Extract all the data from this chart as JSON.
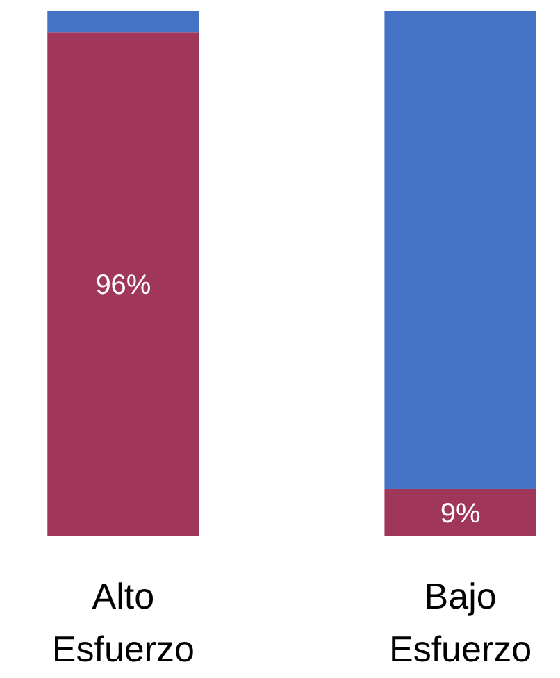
{
  "chart_data": {
    "type": "bar",
    "stacked": true,
    "categories": [
      "Alto Esfuerzo",
      "Bajo Esfuerzo"
    ],
    "ylim": [
      0,
      100
    ],
    "series": [
      {
        "color": "#a0375a",
        "values": [
          96,
          9
        ],
        "value_labels": [
          "96%",
          "9%"
        ]
      },
      {
        "color": "#4472c4",
        "values": [
          4,
          91
        ]
      }
    ]
  }
}
